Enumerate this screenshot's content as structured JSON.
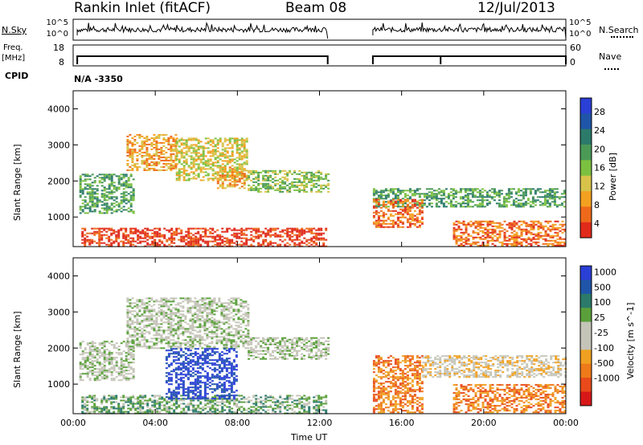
{
  "header": {
    "station": "Rankin Inlet (fitACF)",
    "beam": "Beam 08",
    "date": "12/Jul/2013"
  },
  "top_strip": {
    "nsky_label": "N.Sky",
    "nsky_ticks": [
      "10^5",
      "10^0"
    ],
    "nsearch_label": "N.Search",
    "nsearch_ticks": [
      "10^5",
      "10^0"
    ],
    "freq_label": "Freq.",
    "freq_unit": "[MHz]",
    "freq_ticks": [
      "18",
      "8"
    ],
    "nave_label": "Nave",
    "nave_ticks": [
      "60",
      "0"
    ],
    "cpid_label": "CPID",
    "cpid_value": "N/A -3350"
  },
  "colors": {
    "power": [
      "#2a3fd6",
      "#1f55a8",
      "#2b7a6a",
      "#4a9a56",
      "#7cc040",
      "#d8c34a",
      "#f4a020",
      "#ee6a1a",
      "#e02a1a"
    ],
    "velocity": [
      "#2a3fd6",
      "#1f55a8",
      "#2b7a6a",
      "#5aa03a",
      "#c4c4b8",
      "#c4c4b8",
      "#f0a020",
      "#ee7a1a",
      "#e84a1a",
      "#d81818"
    ]
  },
  "chart_data": [
    {
      "type": "heatmap",
      "title": "Power",
      "ylabel": "Slant Range [km]",
      "xlabel": "",
      "x_ticks": [
        "00:00",
        "04:00",
        "08:00",
        "12:00",
        "16:00",
        "20:00",
        "00:00"
      ],
      "y_ticks": [
        "4000",
        "3000",
        "2000",
        "1000"
      ],
      "ylim": [
        180,
        4500
      ],
      "xlim_hours": [
        0,
        24
      ],
      "data_gap_hours": [
        12.4,
        14.6
      ],
      "colorbar_label": "Power [dB]",
      "colorbar_ticks": [
        "28",
        "24",
        "20",
        "16",
        "12",
        "8",
        "4"
      ],
      "regions": [
        {
          "x": [
            0.4,
            12.3
          ],
          "y": [
            200,
            700
          ],
          "level": 8
        },
        {
          "x": [
            0.3,
            3.0
          ],
          "y": [
            1100,
            2200
          ],
          "level": 3
        },
        {
          "x": [
            2.6,
            5.0
          ],
          "y": [
            2300,
            3300
          ],
          "level": 6
        },
        {
          "x": [
            5.0,
            8.5
          ],
          "y": [
            2000,
            3200
          ],
          "level": 5
        },
        {
          "x": [
            7.0,
            8.3
          ],
          "y": [
            1800,
            2400
          ],
          "level": 6
        },
        {
          "x": [
            8.5,
            12.4
          ],
          "y": [
            1700,
            2300
          ],
          "level": 4
        },
        {
          "x": [
            14.6,
            23.9
          ],
          "y": [
            1300,
            1800
          ],
          "level": 3
        },
        {
          "x": [
            14.6,
            17.0
          ],
          "y": [
            700,
            1500
          ],
          "level": 7
        },
        {
          "x": [
            18.5,
            24.0
          ],
          "y": [
            200,
            900
          ],
          "level": 7
        }
      ]
    },
    {
      "type": "heatmap",
      "title": "Velocity",
      "ylabel": "Slant Range [km]",
      "xlabel": "Time UT",
      "x_ticks": [
        "00:00",
        "04:00",
        "08:00",
        "12:00",
        "16:00",
        "20:00",
        "00:00"
      ],
      "y_ticks": [
        "4000",
        "3000",
        "2000",
        "1000"
      ],
      "ylim": [
        180,
        4500
      ],
      "xlim_hours": [
        0,
        24
      ],
      "data_gap_hours": [
        12.4,
        14.6
      ],
      "colorbar_label": "Velocity [m s^-1]",
      "colorbar_ticks": [
        "1000",
        "500",
        "100",
        "25",
        "-25",
        "-100",
        "-500",
        "-1000"
      ],
      "regions": [
        {
          "x": [
            0.4,
            12.3
          ],
          "y": [
            200,
            700
          ],
          "level": 3
        },
        {
          "x": [
            0.3,
            3.0
          ],
          "y": [
            1100,
            2200
          ],
          "level": 4
        },
        {
          "x": [
            2.6,
            8.5
          ],
          "y": [
            2000,
            3400
          ],
          "level": 4
        },
        {
          "x": [
            4.5,
            8.0
          ],
          "y": [
            600,
            2000
          ],
          "level": 0
        },
        {
          "x": [
            8.5,
            12.4
          ],
          "y": [
            1700,
            2300
          ],
          "level": 4
        },
        {
          "x": [
            14.6,
            17.0
          ],
          "y": [
            200,
            1800
          ],
          "level": 7
        },
        {
          "x": [
            17.0,
            24.0
          ],
          "y": [
            1200,
            1800
          ],
          "level": 5
        },
        {
          "x": [
            18.5,
            24.0
          ],
          "y": [
            200,
            1000
          ],
          "level": 7
        }
      ]
    }
  ]
}
